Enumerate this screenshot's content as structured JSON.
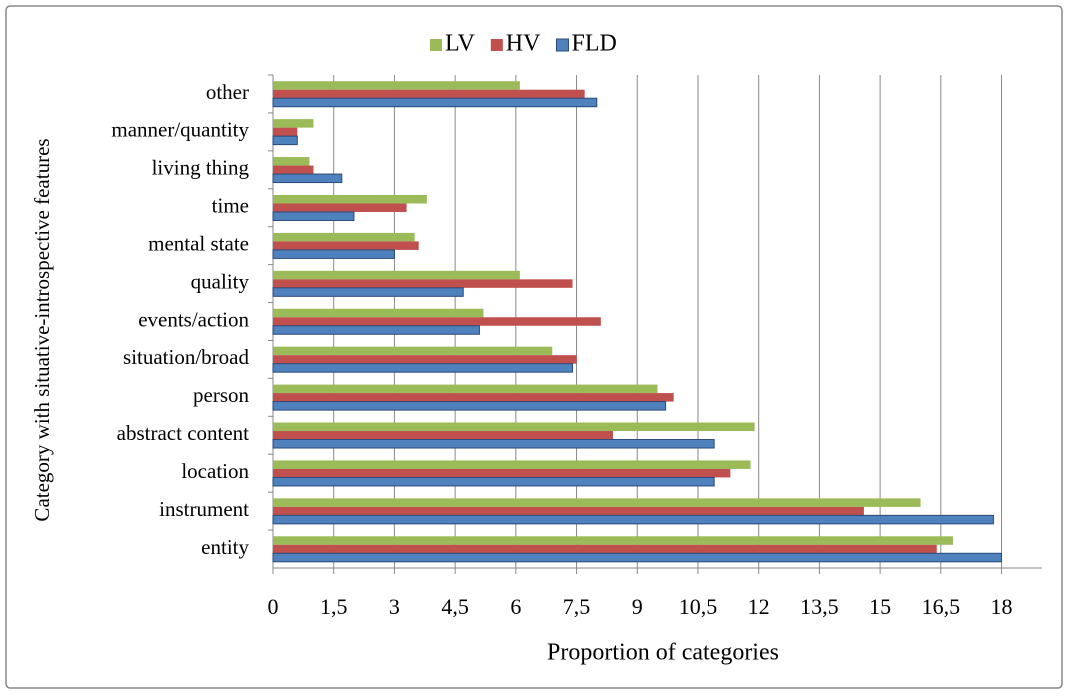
{
  "chart_data": {
    "type": "hbar",
    "xlabel": "Proportion of categories",
    "ylabel": "Category with situative-introspective features",
    "categories": [
      "other",
      "manner/quantity",
      "living thing",
      "time",
      "mental state",
      "quality",
      "events/action",
      "situation/broad",
      "person",
      "abstract content",
      "location",
      "instrument",
      "entity"
    ],
    "series": [
      {
        "name": "LV",
        "color": "#9bbb59",
        "values": [
          6.1,
          1.0,
          0.9,
          3.8,
          3.5,
          6.1,
          5.2,
          6.9,
          9.5,
          11.9,
          11.8,
          16.0,
          16.8
        ]
      },
      {
        "name": "HV",
        "color": "#c0504d",
        "values": [
          7.7,
          0.6,
          1.0,
          3.3,
          3.6,
          7.4,
          8.1,
          7.5,
          9.9,
          8.4,
          11.3,
          14.6,
          16.4
        ]
      },
      {
        "name": "FLD",
        "color": "#4f81bd",
        "values": [
          8.0,
          0.6,
          1.7,
          2.0,
          3.0,
          4.7,
          5.1,
          7.4,
          9.7,
          10.9,
          10.9,
          17.8,
          18.0
        ]
      }
    ],
    "xlim": [
      0,
      19
    ],
    "xticks": [
      0,
      {
        "value": 1.5,
        "label": "1,5"
      },
      3,
      {
        "value": 4.5,
        "label": "4,5"
      },
      6,
      {
        "value": 7.5,
        "label": "7,5"
      },
      9,
      {
        "value": 10.5,
        "label": "10,5"
      },
      12,
      {
        "value": 13.5,
        "label": "13,5"
      },
      15,
      {
        "value": 16.5,
        "label": "16,5"
      },
      18
    ],
    "grid": true,
    "legend": "top"
  }
}
